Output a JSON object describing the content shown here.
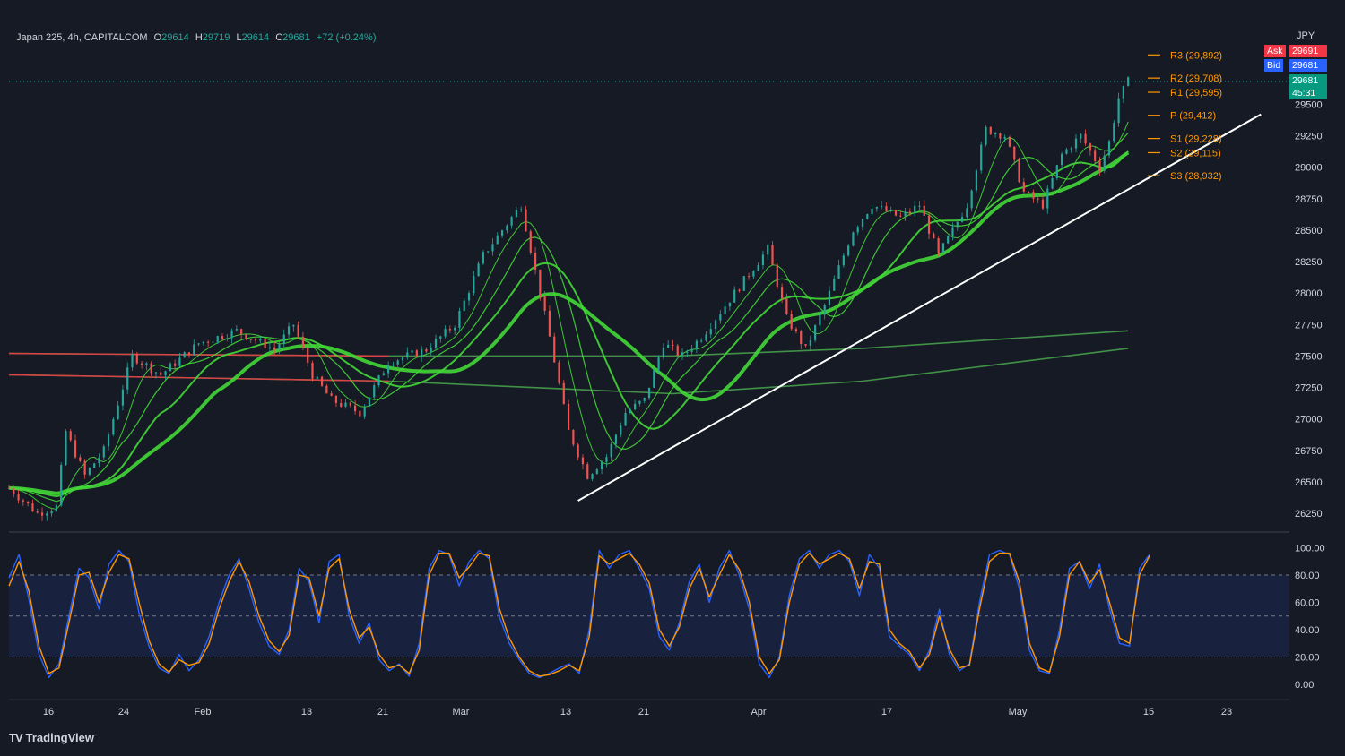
{
  "header": {
    "symbol": "Japan 225, 4h, CAPITALCOM",
    "o_label": "O",
    "o_value": "29614",
    "h_label": "H",
    "h_value": "29719",
    "l_label": "L",
    "l_value": "29614",
    "c_label": "C",
    "c_value": "29681",
    "change": "+72 (+0.24%)"
  },
  "currency": "JPY",
  "quote": {
    "ask_label": "Ask",
    "ask_value": "29691",
    "bid_label": "Bid",
    "bid_value": "29681",
    "last_value": "29681",
    "countdown": "45:31"
  },
  "brand": "TradingView",
  "colors": {
    "bg": "#161a25",
    "up": "#26a69a",
    "ema_green": "#4caf50",
    "ema_red": "#f23645",
    "pivot": "#ff9800",
    "stoch_k": "#2962ff",
    "stoch_d": "#ff9800",
    "trendline": "#ffffff"
  },
  "chart_data": [
    {
      "type": "candlestick",
      "title": "Japan 225, 4h, CAPITALCOM",
      "currency": "JPY",
      "ylim": [
        26100,
        29950
      ],
      "y_ticks": [
        26250,
        26500,
        26750,
        27000,
        27250,
        27500,
        27750,
        28000,
        28250,
        28500,
        28750,
        29000,
        29250,
        29500
      ],
      "x_ticks": [
        "16",
        "24",
        "Feb",
        "13",
        "21",
        "Mar",
        "13",
        "21",
        "Apr",
        "17",
        "May",
        "15",
        "23"
      ],
      "price_path": [
        {
          "t": 0,
          "v": 26450
        },
        {
          "t": 3,
          "v": 26250
        },
        {
          "t": 5,
          "v": 26300
        },
        {
          "t": 6,
          "v": 26900
        },
        {
          "t": 8,
          "v": 26550
        },
        {
          "t": 10,
          "v": 26750
        },
        {
          "t": 12,
          "v": 27250
        },
        {
          "t": 13,
          "v": 27500
        },
        {
          "t": 16,
          "v": 27350
        },
        {
          "t": 20,
          "v": 27600
        },
        {
          "t": 24,
          "v": 27700
        },
        {
          "t": 28,
          "v": 27550
        },
        {
          "t": 30,
          "v": 27750
        },
        {
          "t": 32,
          "v": 27350
        },
        {
          "t": 34,
          "v": 27150
        },
        {
          "t": 37,
          "v": 27050
        },
        {
          "t": 40,
          "v": 27450
        },
        {
          "t": 44,
          "v": 27550
        },
        {
          "t": 47,
          "v": 27750
        },
        {
          "t": 50,
          "v": 28300
        },
        {
          "t": 54,
          "v": 28700
        },
        {
          "t": 57,
          "v": 27650
        },
        {
          "t": 59,
          "v": 26900
        },
        {
          "t": 61,
          "v": 26550
        },
        {
          "t": 63,
          "v": 26700
        },
        {
          "t": 65,
          "v": 27050
        },
        {
          "t": 67,
          "v": 27150
        },
        {
          "t": 69,
          "v": 27600
        },
        {
          "t": 71,
          "v": 27500
        },
        {
          "t": 73,
          "v": 27650
        },
        {
          "t": 75,
          "v": 27850
        },
        {
          "t": 78,
          "v": 28150
        },
        {
          "t": 80,
          "v": 28350
        },
        {
          "t": 82,
          "v": 27800
        },
        {
          "t": 84,
          "v": 27550
        },
        {
          "t": 86,
          "v": 27900
        },
        {
          "t": 89,
          "v": 28500
        },
        {
          "t": 91,
          "v": 28700
        },
        {
          "t": 94,
          "v": 28600
        },
        {
          "t": 96,
          "v": 28700
        },
        {
          "t": 98,
          "v": 28300
        },
        {
          "t": 101,
          "v": 28700
        },
        {
          "t": 103,
          "v": 29300
        },
        {
          "t": 105,
          "v": 29250
        },
        {
          "t": 107,
          "v": 28800
        },
        {
          "t": 109,
          "v": 28700
        },
        {
          "t": 111,
          "v": 29100
        },
        {
          "t": 113,
          "v": 29250
        },
        {
          "t": 115,
          "v": 29000
        },
        {
          "t": 116,
          "v": 29200
        },
        {
          "t": 117,
          "v": 29550
        },
        {
          "t": 118,
          "v": 29681
        }
      ],
      "pivots": [
        {
          "label": "R3 (29,892)",
          "value": 29892
        },
        {
          "label": "R2 (29,708)",
          "value": 29708
        },
        {
          "label": "R1 (29,595)",
          "value": 29595
        },
        {
          "label": "P (29,412)",
          "value": 29412
        },
        {
          "label": "S1 (29,228)",
          "value": 29228
        },
        {
          "label": "S2 (29,115)",
          "value": 29115
        },
        {
          "label": "S3 (28,932)",
          "value": 28932
        }
      ],
      "trendline": [
        {
          "t": 60,
          "v": 26350
        },
        {
          "t": 132,
          "v": 29420
        }
      ],
      "ema_long": [
        {
          "name": "",
          "points": [
            {
              "t": 0,
              "v": 27520
            },
            {
              "t": 40,
              "v": 27500
            },
            {
              "t": 70,
              "v": 27500
            },
            {
              "t": 90,
              "v": 27560
            },
            {
              "t": 118,
              "v": 27700
            }
          ]
        },
        {
          "name": "",
          "points": [
            {
              "t": 0,
              "v": 27350
            },
            {
              "t": 40,
              "v": 27300
            },
            {
              "t": 70,
              "v": 27200
            },
            {
              "t": 90,
              "v": 27300
            },
            {
              "t": 118,
              "v": 27560
            }
          ]
        }
      ]
    },
    {
      "type": "line",
      "title": "",
      "ylim": [
        0,
        100
      ],
      "y_ticks": [
        "100.00",
        "80.00",
        "60.00",
        "40.00",
        "20.00",
        "0.00"
      ],
      "band": [
        20,
        80
      ],
      "series": [
        {
          "name": "",
          "values": [
            78,
            95,
            62,
            22,
            5,
            15,
            50,
            85,
            78,
            55,
            88,
            98,
            90,
            52,
            28,
            12,
            8,
            22,
            10,
            18,
            35,
            60,
            80,
            92,
            70,
            45,
            28,
            22,
            40,
            85,
            75,
            45,
            90,
            95,
            50,
            30,
            45,
            18,
            10,
            15,
            6,
            30,
            85,
            98,
            95,
            72,
            90,
            98,
            92,
            50,
            30,
            18,
            8,
            5,
            8,
            12,
            15,
            8,
            40,
            98,
            85,
            95,
            98,
            85,
            70,
            35,
            25,
            45,
            75,
            88,
            60,
            85,
            98,
            80,
            55,
            15,
            5,
            20,
            65,
            92,
            98,
            85,
            95,
            98,
            90,
            65,
            95,
            85,
            35,
            28,
            22,
            10,
            25,
            55,
            22,
            10,
            15,
            60,
            95,
            98,
            95,
            70,
            25,
            10,
            8,
            40,
            85,
            90,
            70,
            88,
            55,
            30,
            28,
            85,
            95
          ]
        },
        {
          "name": "",
          "values": [
            72,
            90,
            68,
            28,
            8,
            12,
            45,
            80,
            82,
            60,
            82,
            95,
            92,
            60,
            32,
            15,
            9,
            18,
            14,
            16,
            30,
            55,
            75,
            90,
            75,
            50,
            32,
            24,
            36,
            80,
            78,
            50,
            85,
            92,
            55,
            34,
            42,
            22,
            12,
            14,
            8,
            25,
            80,
            96,
            96,
            78,
            86,
            96,
            94,
            56,
            34,
            20,
            10,
            6,
            7,
            10,
            14,
            10,
            35,
            94,
            88,
            92,
            96,
            88,
            74,
            40,
            28,
            42,
            70,
            85,
            64,
            80,
            95,
            84,
            60,
            20,
            8,
            18,
            60,
            88,
            96,
            88,
            92,
            96,
            92,
            70,
            90,
            88,
            40,
            30,
            24,
            12,
            22,
            50,
            26,
            12,
            14,
            55,
            90,
            96,
            96,
            75,
            30,
            12,
            9,
            35,
            80,
            90,
            74,
            84,
            60,
            34,
            30,
            80,
            94
          ]
        }
      ]
    }
  ]
}
